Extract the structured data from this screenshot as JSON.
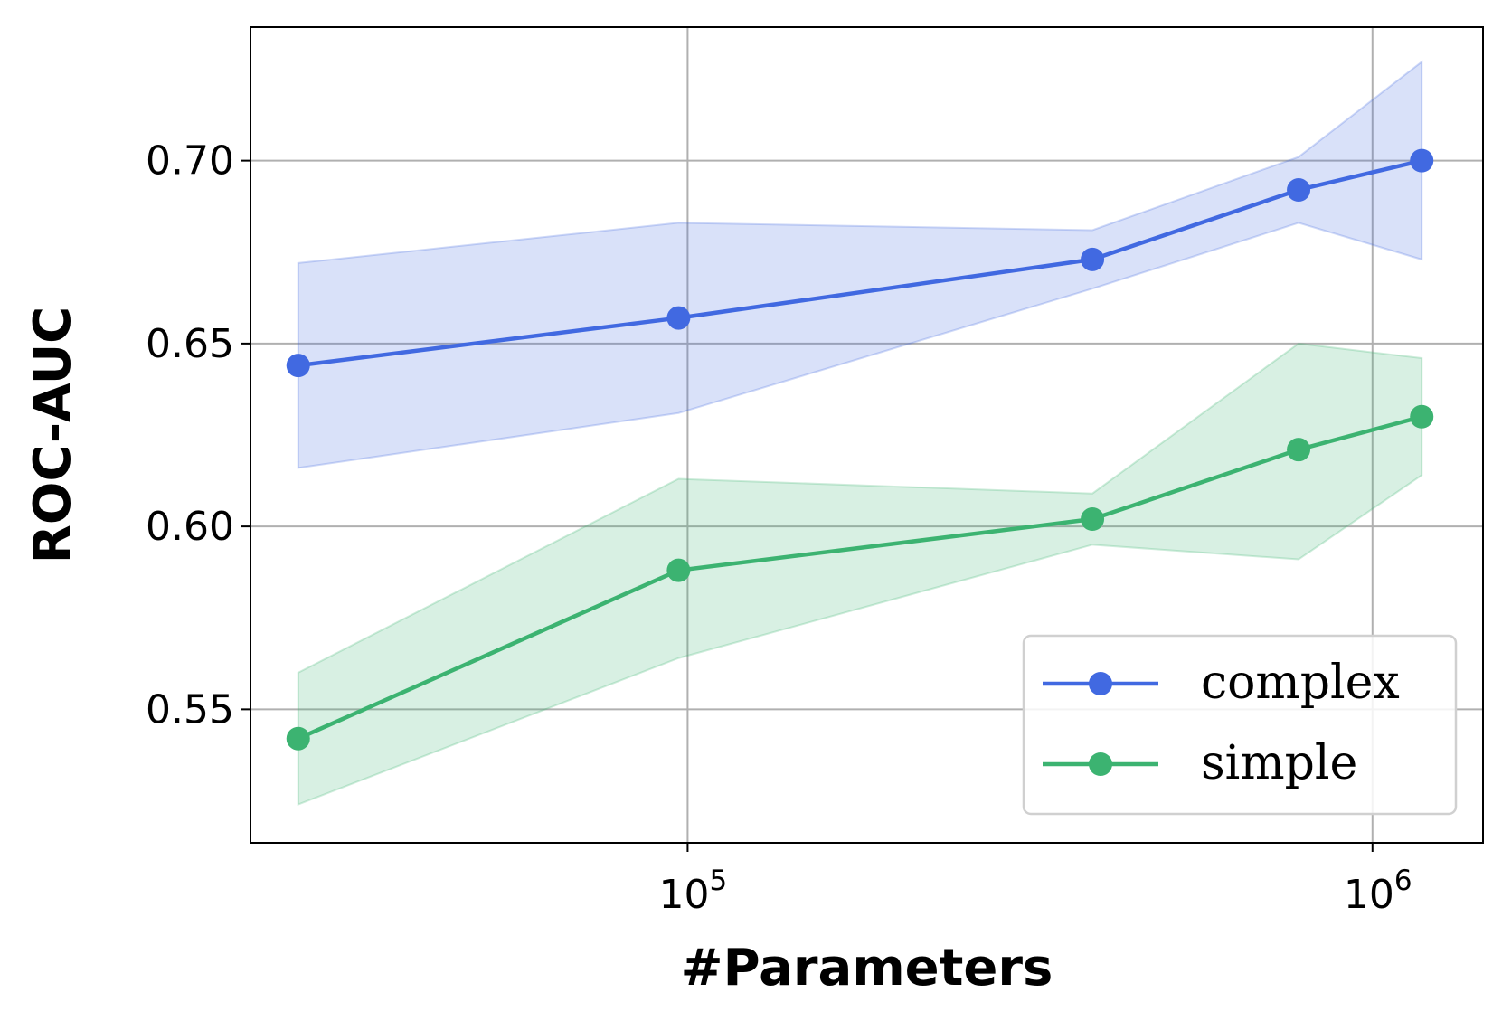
{
  "chart_data": {
    "type": "line",
    "xscale": "log",
    "xlabel": "#Parameters",
    "ylabel": "ROC-AUC",
    "xlim": [
      23000,
      1450000
    ],
    "ylim": [
      0.5135,
      0.7365
    ],
    "xticks": [
      {
        "value": 100000,
        "base": "10",
        "exp": "5"
      },
      {
        "value": 1000000,
        "base": "10",
        "exp": "6"
      }
    ],
    "yticks": [
      {
        "value": 0.55,
        "label": "0.55"
      },
      {
        "value": 0.6,
        "label": "0.60"
      },
      {
        "value": 0.65,
        "label": "0.65"
      },
      {
        "value": 0.7,
        "label": "0.70"
      }
    ],
    "grid": true,
    "legend": "lower-right",
    "series": [
      {
        "name": "complex",
        "color": "#4169e1",
        "x": [
          27000,
          97000,
          390000,
          780000,
          1180000
        ],
        "y": [
          0.644,
          0.657,
          0.673,
          0.692,
          0.7
        ],
        "lower": [
          0.616,
          0.631,
          0.665,
          0.683,
          0.673
        ],
        "upper": [
          0.672,
          0.683,
          0.681,
          0.701,
          0.727
        ]
      },
      {
        "name": "simple",
        "color": "#3cb371",
        "x": [
          27000,
          97000,
          390000,
          780000,
          1180000
        ],
        "y": [
          0.542,
          0.588,
          0.602,
          0.621,
          0.63
        ],
        "lower": [
          0.524,
          0.564,
          0.595,
          0.591,
          0.614
        ],
        "upper": [
          0.56,
          0.613,
          0.609,
          0.65,
          0.646
        ]
      }
    ]
  }
}
